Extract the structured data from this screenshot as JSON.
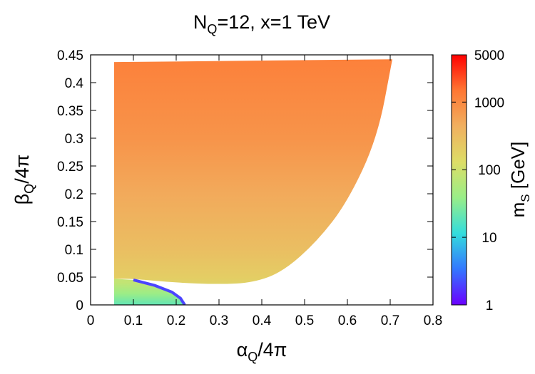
{
  "chart_data": {
    "type": "heatmap",
    "title": {
      "main": "N",
      "sub": "Q",
      "rest": "=12, x=1 TeV"
    },
    "xlabel": {
      "sym": "α",
      "sub": "Q",
      "rest": "/4π"
    },
    "ylabel": {
      "sym": "β",
      "sub": "Q",
      "rest": "/4π"
    },
    "colorbar_label": {
      "main": "m",
      "sub": "S",
      "rest": " [GeV]"
    },
    "xlim": [
      0,
      0.8
    ],
    "ylim": [
      0,
      0.45
    ],
    "x_ticks": [
      "0",
      "0.1",
      "0.2",
      "0.3",
      "0.4",
      "0.5",
      "0.6",
      "0.7",
      "0.8"
    ],
    "y_ticks": [
      "0",
      "0.05",
      "0.1",
      "0.15",
      "0.2",
      "0.25",
      "0.3",
      "0.35",
      "0.4",
      "0.45"
    ],
    "color_scale": "log",
    "colorbar_range": [
      1,
      5000
    ],
    "colorbar_ticks": [
      "1",
      "10",
      "100",
      "1000",
      "5000"
    ],
    "colormap": [
      "#6a00ff",
      "#3377ff",
      "#33dddd",
      "#99ee88",
      "#dddd66",
      "#f0b060",
      "#ff7733",
      "#ff0000"
    ],
    "main_region": {
      "x_left": 0.055,
      "y_top_left": 0.437,
      "y_top_right": 0.442,
      "x_right_top": 0.705,
      "boundary_right": [
        [
          0.705,
          0.442
        ],
        [
          0.67,
          0.3
        ],
        [
          0.6,
          0.185
        ],
        [
          0.53,
          0.115
        ],
        [
          0.45,
          0.06
        ],
        [
          0.38,
          0.04
        ],
        [
          0.3,
          0.037
        ],
        [
          0.2,
          0.04
        ],
        [
          0.1,
          0.047
        ],
        [
          0.055,
          0.047
        ]
      ],
      "mS_gradient": [
        [
          0.0,
          100
        ],
        [
          0.05,
          200
        ],
        [
          0.1,
          300
        ],
        [
          0.2,
          500
        ],
        [
          0.3,
          800
        ],
        [
          0.44,
          1200
        ]
      ]
    },
    "small_region": {
      "boundary": [
        [
          0.055,
          0.047
        ],
        [
          0.1,
          0.045
        ],
        [
          0.15,
          0.035
        ],
        [
          0.19,
          0.023
        ],
        [
          0.21,
          0.012
        ],
        [
          0.22,
          0.0
        ],
        [
          0.055,
          0.0
        ]
      ],
      "mS_gradient": [
        [
          0.0,
          20
        ],
        [
          0.02,
          40
        ],
        [
          0.04,
          80
        ]
      ],
      "edge_mS": 2
    }
  }
}
